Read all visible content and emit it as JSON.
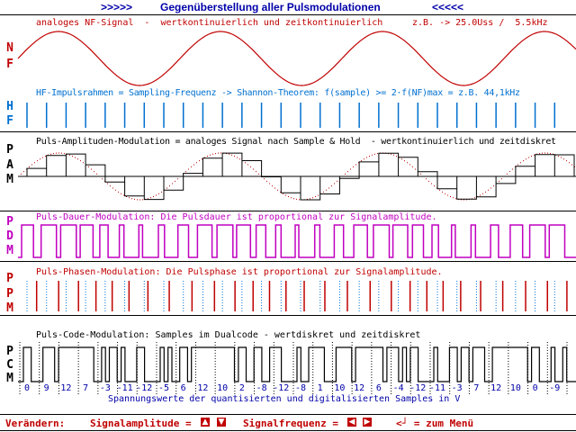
{
  "header": {
    "left_marker": ">>>>>",
    "title": "Gegenüberstellung aller Pulsmodulationen",
    "right_marker": "<<<<<"
  },
  "panels": {
    "nf": {
      "label_lines": [
        "N",
        "F"
      ],
      "description": "analoges NF-Signal  -  wertkontinuierlich und zeitkontinuierlich",
      "example": "z.B. -> 25.0Uss /  5.5kHz"
    },
    "hf": {
      "label_lines": [
        "H",
        "F"
      ],
      "description": "HF-Impulsrahmen = Sampling-Frequenz -> Shannon-Theorem: f(sample) >= 2·f(NF)max = z.B. 44,1kHz"
    },
    "pam": {
      "label_lines": [
        "P",
        "A",
        "M"
      ],
      "description": "Puls-Amplituden-Modulation = analoges Signal nach Sample & Hold  - wertkontinuierlich und zeitdiskret"
    },
    "pdm": {
      "label_lines": [
        "P",
        "D",
        "M"
      ],
      "description": "Puls-Dauer-Modulation: Die Pulsdauer ist proportional zur Signalamplitude."
    },
    "ppm": {
      "label_lines": [
        "P",
        "P",
        "M"
      ],
      "description": "Puls-Phasen-Modulation: Die Pulsphase ist proportional zur Signalamplitude."
    },
    "pcm": {
      "label_lines": [
        "P",
        "C",
        "M"
      ],
      "description": "Puls-Code-Modulation: Samples im Dualcode - wertdiskret und zeitdiskret",
      "samples": [
        0,
        9,
        12,
        7,
        -3,
        -11,
        -12,
        -5,
        6,
        12,
        10,
        2,
        -8,
        -12,
        -8,
        1,
        10,
        12,
        6,
        -4,
        -12,
        -11,
        -3,
        7,
        12,
        10,
        0,
        -9
      ],
      "caption": "Spannungswerte der quantisierten und digitalisierten Samples in V"
    }
  },
  "footer": {
    "change_label": "Verändern:",
    "amplitude_label": "Signalamplitude =",
    "frequency_label": "Signalfrequenz =",
    "menu_label": "<┘ = zum Menü"
  },
  "colors": {
    "nf": "#c00000",
    "hf": "#0070d0",
    "pam": "#000000",
    "pdm": "#c000c0",
    "ppm": "#c00000",
    "pcm": "#000000",
    "header": "#0000a8",
    "footer": "#c00000"
  },
  "icons": {
    "amp_up": "arrow-up-icon",
    "amp_down": "arrow-down-icon",
    "freq_left": "arrow-left-icon",
    "freq_right": "arrow-right-icon"
  }
}
